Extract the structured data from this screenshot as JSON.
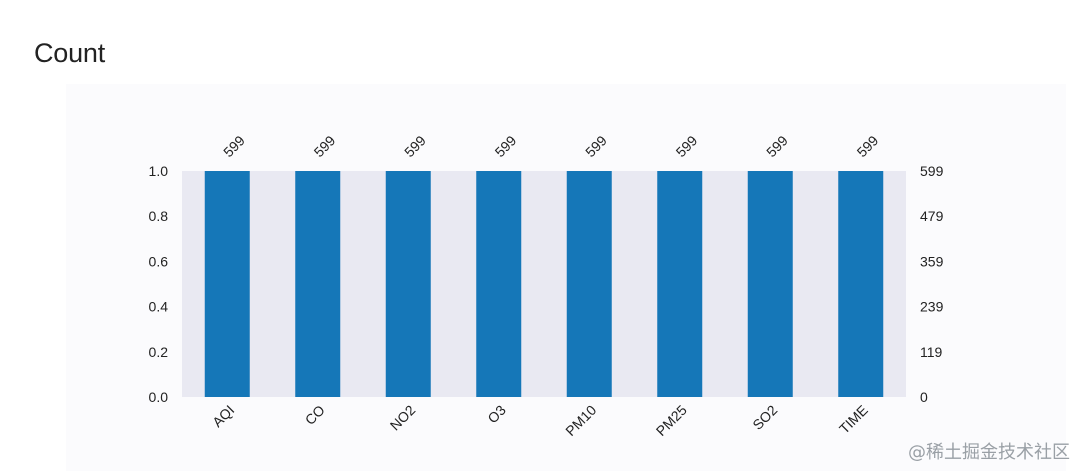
{
  "heading": "Count",
  "watermark": "@稀土掘金技术社区",
  "colors": {
    "bar": "#1577b8",
    "plot_background": "#e9e9f2",
    "panel_background": "#fbfbfd",
    "text": "#222222"
  },
  "chart_data": {
    "type": "bar",
    "title": "",
    "xlabel": "",
    "ylabel": "",
    "categories": [
      "AQI",
      "CO",
      "NO2",
      "O3",
      "PM10",
      "PM25",
      "SO2",
      "TIME"
    ],
    "values": [
      1.0,
      1.0,
      1.0,
      1.0,
      1.0,
      1.0,
      1.0,
      1.0
    ],
    "data_labels": [
      "599",
      "599",
      "599",
      "599",
      "599",
      "599",
      "599",
      "599"
    ],
    "ylim": [
      0,
      1.0
    ],
    "y_ticks": [
      "0.0",
      "0.2",
      "0.4",
      "0.6",
      "0.8",
      "1.0"
    ],
    "secondary_y_ticks": [
      "0",
      "119",
      "239",
      "359",
      "479",
      "599"
    ],
    "grid": false,
    "legend": "none"
  }
}
